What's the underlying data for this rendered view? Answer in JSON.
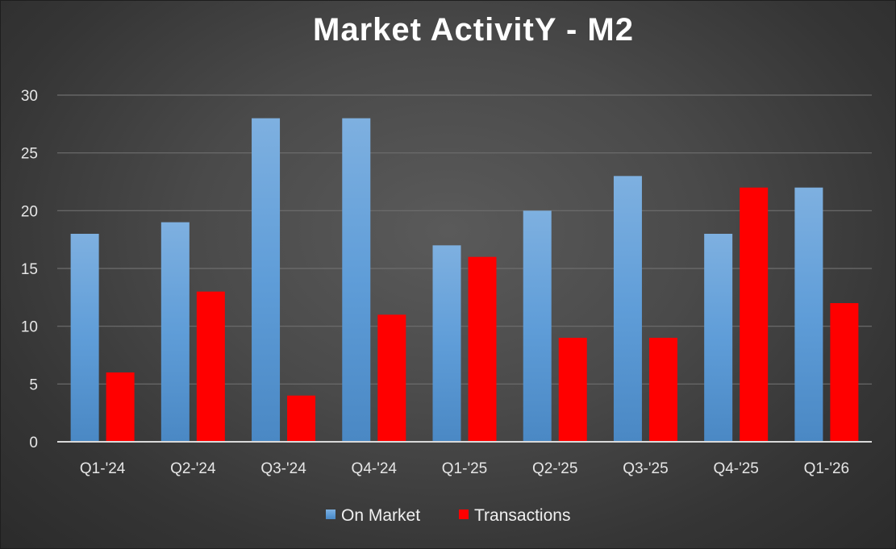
{
  "chart_data": {
    "type": "bar",
    "title": "Market ActivitY - M2",
    "xlabel": "",
    "ylabel": "",
    "categories": [
      "Q1-'24",
      "Q2-'24",
      "Q3-'24",
      "Q4-'24",
      "Q1-'25",
      "Q2-'25",
      "Q3-'25",
      "Q4-'25",
      "Q1-'26"
    ],
    "series": [
      {
        "name": "On Market",
        "values": [
          18,
          19,
          28,
          28,
          17,
          20,
          23,
          18,
          22
        ],
        "color": "#5b9bd5"
      },
      {
        "name": "Transactions",
        "values": [
          6,
          13,
          4,
          11,
          16,
          9,
          9,
          22,
          12
        ],
        "color": "#ff0000"
      }
    ],
    "ylim": [
      0,
      30
    ],
    "yticks": [
      0,
      5,
      10,
      15,
      20,
      25,
      30
    ],
    "grid": true,
    "legend_position": "bottom"
  }
}
